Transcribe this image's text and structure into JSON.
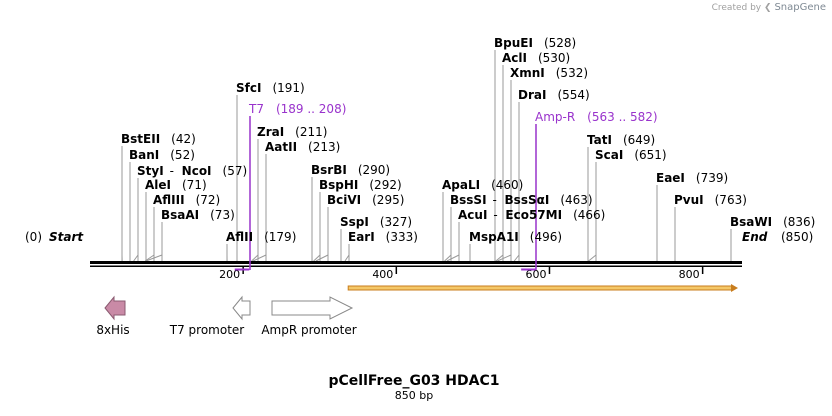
{
  "credit": {
    "prefix": "Created by",
    "brand": "SnapGene"
  },
  "map": {
    "title": "pCellFree_G03 HDAC1",
    "length_label": "850 bp",
    "length": 850,
    "start_label": "Start",
    "start_pos_label": "(0)",
    "end_label": "End",
    "end_pos_label": "(850)"
  },
  "ruler_ticks": [
    {
      "pos": 200,
      "label": "200"
    },
    {
      "pos": 400,
      "label": "400"
    },
    {
      "pos": 600,
      "label": "600"
    },
    {
      "pos": 800,
      "label": "800"
    }
  ],
  "sites": [
    {
      "name": "BstEII",
      "pos_label": "(42)",
      "pos": 42
    },
    {
      "name": "BanI",
      "pos_label": "(52)",
      "pos": 52
    },
    {
      "name": "StyI",
      "alt": "NcoI",
      "pos_label": "(57)",
      "pos": 57
    },
    {
      "name": "AleI",
      "pos_label": "(71)",
      "pos": 71
    },
    {
      "name": "AflIII",
      "pos_label": "(72)",
      "pos": 72
    },
    {
      "name": "BsaAI",
      "pos_label": "(73)",
      "pos": 73
    },
    {
      "name": "AflII",
      "pos_label": "(179)",
      "pos": 179
    },
    {
      "name": "SfcI",
      "pos_label": "(191)",
      "pos": 191
    },
    {
      "name": "ZraI",
      "pos_label": "(211)",
      "pos": 211
    },
    {
      "name": "AatII",
      "pos_label": "(213)",
      "pos": 213
    },
    {
      "name": "BsrBI",
      "pos_label": "(290)",
      "pos": 290
    },
    {
      "name": "BspHI",
      "pos_label": "(292)",
      "pos": 292
    },
    {
      "name": "BciVI",
      "pos_label": "(295)",
      "pos": 295
    },
    {
      "name": "SspI",
      "pos_label": "(327)",
      "pos": 327
    },
    {
      "name": "EarI",
      "pos_label": "(333)",
      "pos": 333
    },
    {
      "name": "ApaLI",
      "pos_label": "(460)",
      "pos": 460
    },
    {
      "name": "BssSI",
      "alt": "BssSαI",
      "pos_label": "(463)",
      "pos": 463
    },
    {
      "name": "AcuI",
      "alt": "Eco57MI",
      "pos_label": "(466)",
      "pos": 466
    },
    {
      "name": "MspA1I",
      "pos_label": "(496)",
      "pos": 496
    },
    {
      "name": "BpuEI",
      "pos_label": "(528)",
      "pos": 528
    },
    {
      "name": "AclI",
      "pos_label": "(530)",
      "pos": 530
    },
    {
      "name": "XmnI",
      "pos_label": "(532)",
      "pos": 532
    },
    {
      "name": "DraI",
      "pos_label": "(554)",
      "pos": 554
    },
    {
      "name": "TatI",
      "pos_label": "(649)",
      "pos": 649
    },
    {
      "name": "ScaI",
      "pos_label": "(651)",
      "pos": 651
    },
    {
      "name": "EaeI",
      "pos_label": "(739)",
      "pos": 739
    },
    {
      "name": "PvuI",
      "pos_label": "(763)",
      "pos": 763
    },
    {
      "name": "BsaWI",
      "pos_label": "(836)",
      "pos": 836
    }
  ],
  "primers": [
    {
      "name": "T7",
      "range_label": "(189 .. 208)",
      "start": 189,
      "end": 208,
      "color": "#9933cc"
    },
    {
      "name": "Amp-R",
      "range_label": "(563 .. 582)",
      "start": 563,
      "end": 582,
      "color": "#9933cc"
    }
  ],
  "features": [
    {
      "name": "8xHis",
      "direction": "reverse",
      "fill": "#c98aa6",
      "stroke": "#8a5a70"
    },
    {
      "name": "T7 promoter",
      "direction": "reverse",
      "fill": "#ffffff",
      "stroke": "#888888"
    },
    {
      "name": "AmpR promoter",
      "direction": "forward",
      "fill": "#ffffff",
      "stroke": "#888888"
    }
  ],
  "orf": {
    "start": 345,
    "end": 850,
    "color": "#f5c868",
    "outline": "#c87d1e"
  },
  "colors": {
    "backbone": "#000000",
    "site_line": "#999999",
    "primer": "#9933cc",
    "text": "#000000"
  }
}
